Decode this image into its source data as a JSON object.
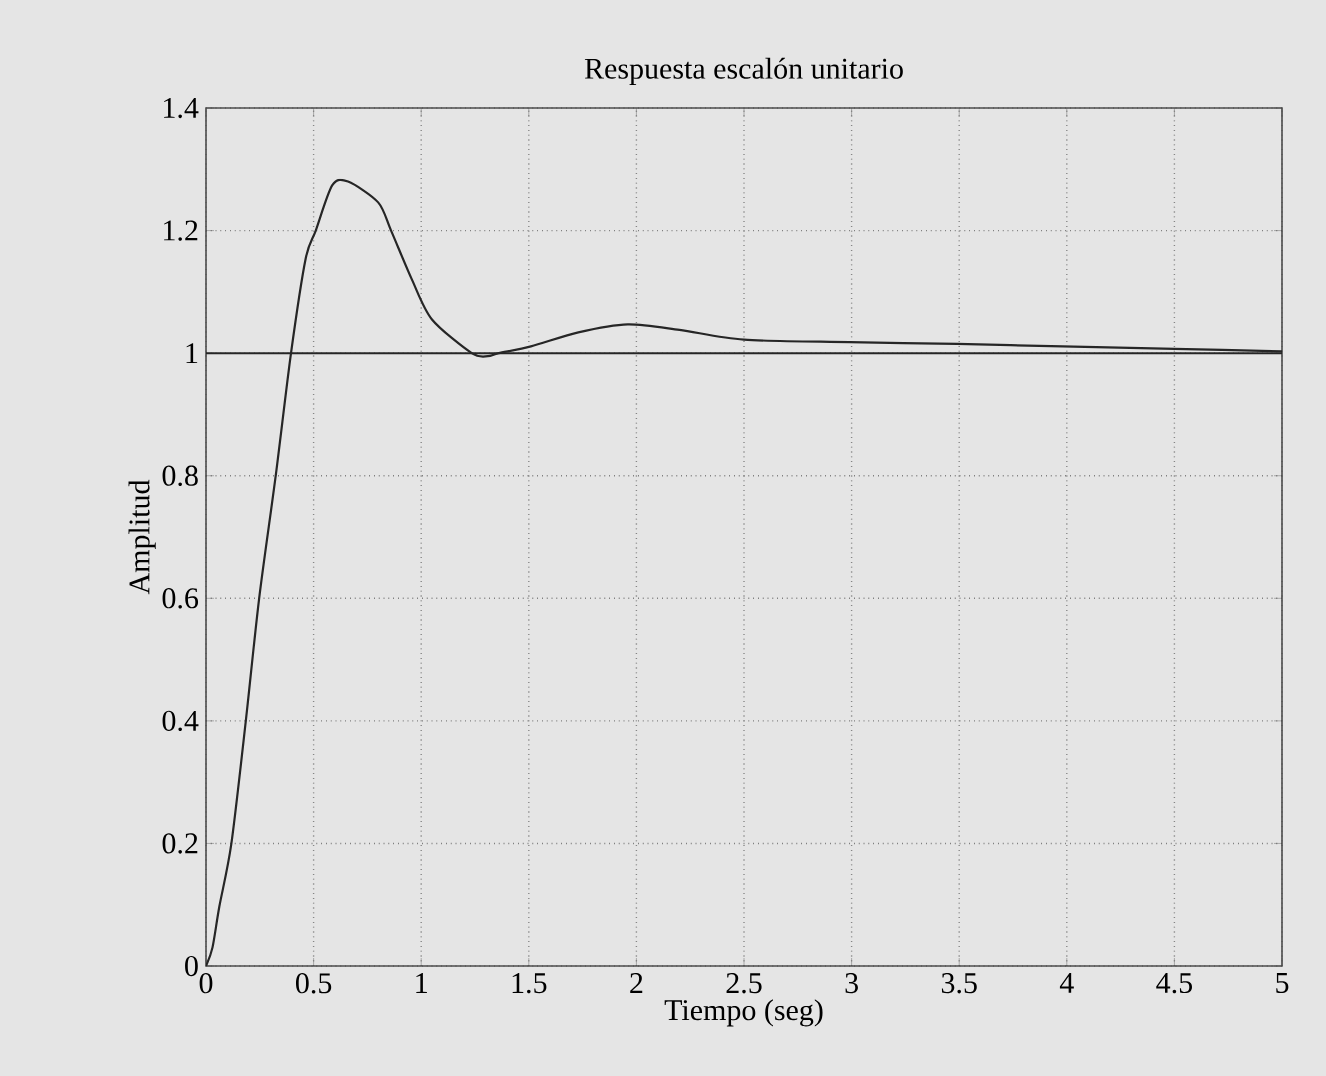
{
  "chart_data": {
    "type": "line",
    "title": "Respuesta escalón unitario",
    "xlabel": "Tiempo (seg)",
    "ylabel": "Amplitud",
    "x": [
      0,
      0.03,
      0.062,
      0.118,
      0.185,
      0.247,
      0.324,
      0.395,
      0.463,
      0.51,
      0.587,
      0.66,
      0.8,
      0.86,
      0.957,
      1.05,
      1.235,
      1.31,
      1.36,
      1.51,
      1.73,
      1.96,
      2.2,
      2.5,
      2.99,
      3.49,
      3.98,
      4.5,
      5.0
    ],
    "series": [
      {
        "color": "#262626",
        "values": [
          0,
          0.03,
          0.097,
          0.2,
          0.4,
          0.6,
          0.8,
          1.0,
          1.154,
          1.2,
          1.274,
          1.28,
          1.246,
          1.2,
          1.12,
          1.055,
          1.0,
          0.995,
          1.0,
          1.011,
          1.034,
          1.047,
          1.038,
          1.022,
          1.018,
          1.015,
          1.011,
          1.007,
          1.003
        ]
      }
    ],
    "xlim": [
      0,
      5
    ],
    "ylim": [
      0,
      1.4
    ],
    "xticks": [
      0,
      0.5,
      1,
      1.5,
      2,
      2.5,
      3,
      3.5,
      4,
      4.5,
      5
    ],
    "yticks": [
      0,
      0.2,
      0.4,
      0.6,
      0.8,
      1,
      1.2,
      1.4
    ],
    "ref_lines": [
      {
        "axis": "y",
        "value": 1,
        "color": "#262626"
      }
    ],
    "grid": true,
    "marker": "none",
    "line_style": "solid"
  }
}
